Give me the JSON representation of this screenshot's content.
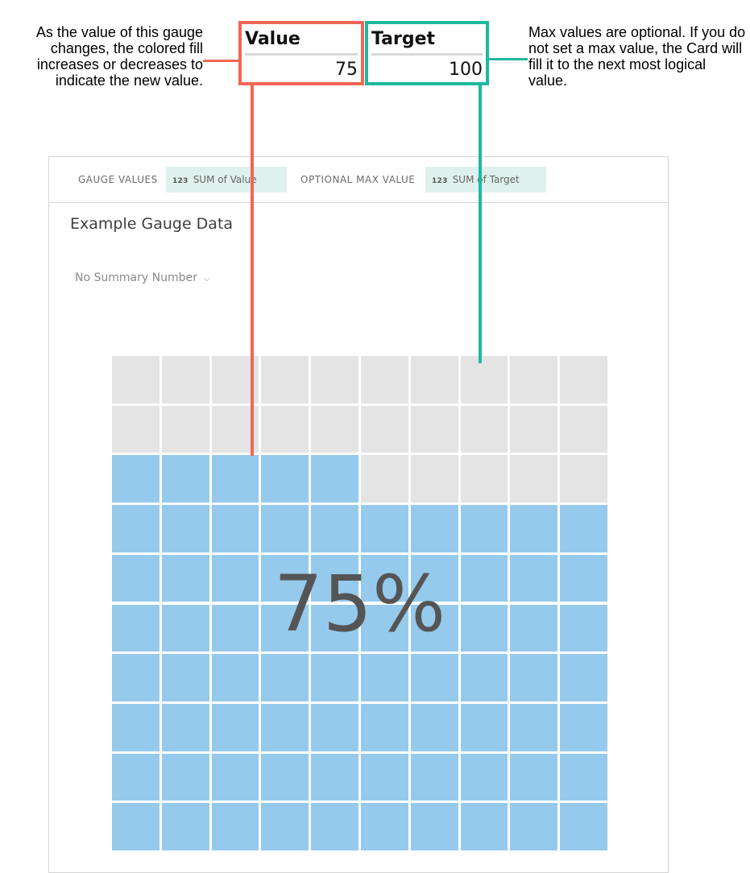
{
  "annotations": {
    "left_note": "As the value of this gauge changes, the colored fill increases or decreases to indicate the new value.",
    "right_note": "Max values are optional. If you do not set a max value, the Card will fill it to the next most logical value."
  },
  "fields": {
    "value": {
      "header": "Value",
      "value": "75"
    },
    "target": {
      "header": "Target",
      "value": "100"
    }
  },
  "card": {
    "gauge_values_label": "GAUGE VALUES",
    "gauge_values_pill": {
      "type_icon": "123",
      "text": "SUM of Value"
    },
    "max_value_label": "OPTIONAL MAX VALUE",
    "max_value_pill": {
      "type_icon": "123",
      "text": "SUM of Target"
    },
    "title": "Example Gauge Data",
    "summary_dropdown": "No Summary Number"
  },
  "gauge": {
    "value": 75,
    "max": 100,
    "percent_label": "75%",
    "grid_rows": 10,
    "grid_cols": 10
  },
  "colors": {
    "fill": "#96caec",
    "empty": "#e3e4e3",
    "value_annotation": "#f26655",
    "target_annotation": "#1db9a0",
    "pill_background": "#dff1ec"
  }
}
